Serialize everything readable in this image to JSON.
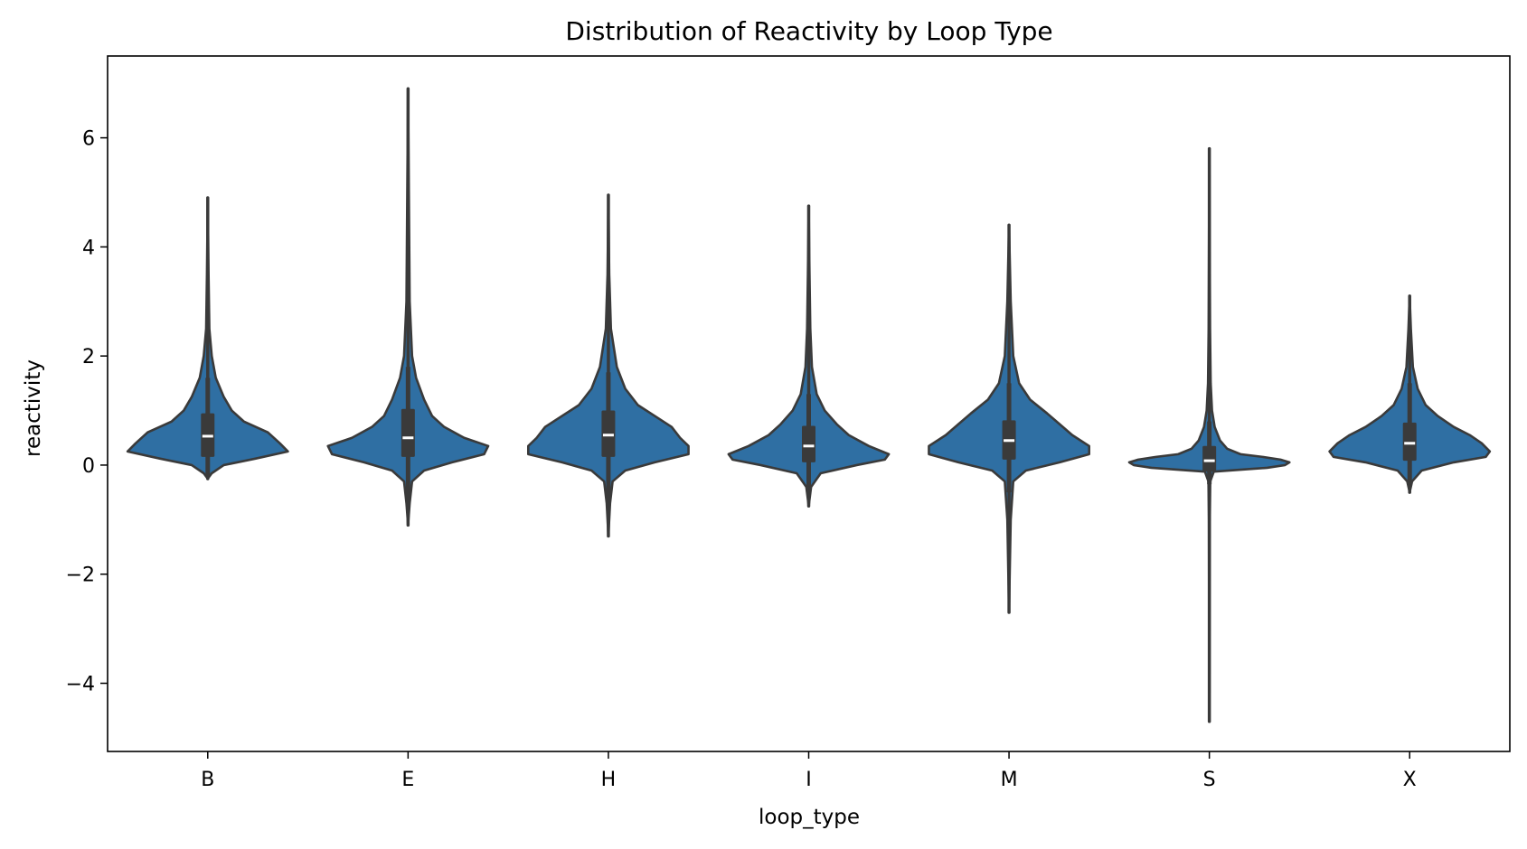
{
  "chart_data": {
    "type": "violin",
    "title": "Distribution of Reactivity by Loop Type",
    "xlabel": "loop_type",
    "ylabel": "reactivity",
    "ylim": [
      -5.25,
      7.5
    ],
    "yticks": [
      -4,
      -2,
      0,
      2,
      4,
      6
    ],
    "ytick_labels": [
      "−4",
      "−2",
      "0",
      "2",
      "4",
      "6"
    ],
    "grid": false,
    "legend": "none",
    "colors": {
      "fill": "#2f6fa3",
      "edge": "#3a3a3a",
      "box": "#3a3a3a",
      "median": "#ffffff"
    },
    "categories": [
      "B",
      "E",
      "H",
      "I",
      "M",
      "S",
      "X"
    ],
    "violins": [
      {
        "category": "B",
        "min": -0.25,
        "max": 4.9,
        "q1": 0.15,
        "median": 0.53,
        "q3": 0.95,
        "whisker_low": -0.2,
        "whisker_high": 1.6,
        "profile": [
          [
            -0.25,
            0.0
          ],
          [
            -0.15,
            0.05
          ],
          [
            0.0,
            0.2
          ],
          [
            0.12,
            0.6
          ],
          [
            0.25,
            1.0
          ],
          [
            0.4,
            0.9
          ],
          [
            0.6,
            0.75
          ],
          [
            0.8,
            0.45
          ],
          [
            1.0,
            0.3
          ],
          [
            1.25,
            0.2
          ],
          [
            1.6,
            0.1
          ],
          [
            2.0,
            0.05
          ],
          [
            2.5,
            0.02
          ],
          [
            3.5,
            0.01
          ],
          [
            4.9,
            0.0
          ]
        ]
      },
      {
        "category": "E",
        "min": -1.1,
        "max": 6.9,
        "q1": 0.15,
        "median": 0.5,
        "q3": 1.03,
        "whisker_low": -0.7,
        "whisker_high": 1.8,
        "profile": [
          [
            -1.1,
            0.0
          ],
          [
            -0.7,
            0.02
          ],
          [
            -0.3,
            0.05
          ],
          [
            -0.1,
            0.2
          ],
          [
            0.05,
            0.55
          ],
          [
            0.2,
            0.95
          ],
          [
            0.35,
            1.0
          ],
          [
            0.5,
            0.7
          ],
          [
            0.7,
            0.45
          ],
          [
            0.9,
            0.3
          ],
          [
            1.2,
            0.2
          ],
          [
            1.6,
            0.1
          ],
          [
            2.0,
            0.05
          ],
          [
            3.0,
            0.02
          ],
          [
            5.0,
            0.01
          ],
          [
            6.9,
            0.0
          ]
        ]
      },
      {
        "category": "H",
        "min": -1.3,
        "max": 4.95,
        "q1": 0.15,
        "median": 0.55,
        "q3": 1.0,
        "whisker_low": -0.7,
        "whisker_high": 1.7,
        "profile": [
          [
            -1.3,
            0.0
          ],
          [
            -0.7,
            0.02
          ],
          [
            -0.3,
            0.05
          ],
          [
            -0.1,
            0.2
          ],
          [
            0.05,
            0.55
          ],
          [
            0.2,
            0.95
          ],
          [
            0.35,
            0.95
          ],
          [
            0.5,
            0.85
          ],
          [
            0.7,
            0.75
          ],
          [
            0.9,
            0.55
          ],
          [
            1.1,
            0.35
          ],
          [
            1.4,
            0.2
          ],
          [
            1.8,
            0.1
          ],
          [
            2.5,
            0.03
          ],
          [
            3.5,
            0.01
          ],
          [
            4.95,
            0.0
          ]
        ]
      },
      {
        "category": "I",
        "min": -0.75,
        "max": 4.75,
        "q1": 0.05,
        "median": 0.35,
        "q3": 0.72,
        "whisker_low": -0.4,
        "whisker_high": 1.3,
        "profile": [
          [
            -0.75,
            0.0
          ],
          [
            -0.4,
            0.03
          ],
          [
            -0.15,
            0.15
          ],
          [
            0.0,
            0.6
          ],
          [
            0.1,
            0.95
          ],
          [
            0.2,
            1.0
          ],
          [
            0.35,
            0.75
          ],
          [
            0.55,
            0.5
          ],
          [
            0.75,
            0.35
          ],
          [
            1.0,
            0.2
          ],
          [
            1.3,
            0.1
          ],
          [
            1.8,
            0.04
          ],
          [
            2.5,
            0.02
          ],
          [
            3.5,
            0.01
          ],
          [
            4.75,
            0.0
          ]
        ]
      },
      {
        "category": "M",
        "min": -2.7,
        "max": 4.4,
        "q1": 0.1,
        "median": 0.45,
        "q3": 0.82,
        "whisker_low": -0.5,
        "whisker_high": 1.5,
        "profile": [
          [
            -2.7,
            0.0
          ],
          [
            -1.0,
            0.02
          ],
          [
            -0.3,
            0.05
          ],
          [
            -0.1,
            0.2
          ],
          [
            0.05,
            0.6
          ],
          [
            0.2,
            0.95
          ],
          [
            0.35,
            0.95
          ],
          [
            0.55,
            0.75
          ],
          [
            0.75,
            0.6
          ],
          [
            0.95,
            0.45
          ],
          [
            1.2,
            0.25
          ],
          [
            1.5,
            0.12
          ],
          [
            2.0,
            0.05
          ],
          [
            3.0,
            0.02
          ],
          [
            4.4,
            0.0
          ]
        ]
      },
      {
        "category": "S",
        "min": -4.7,
        "max": 5.8,
        "q1": -0.12,
        "median": 0.08,
        "q3": 0.35,
        "whisker_low": -0.35,
        "whisker_high": 0.8,
        "profile": [
          [
            -4.7,
            0.0
          ],
          [
            -1.0,
            0.005
          ],
          [
            -0.3,
            0.01
          ],
          [
            -0.12,
            0.05
          ],
          [
            -0.05,
            0.65
          ],
          [
            0.0,
            0.85
          ],
          [
            0.05,
            0.9
          ],
          [
            0.1,
            0.8
          ],
          [
            0.15,
            0.6
          ],
          [
            0.2,
            0.35
          ],
          [
            0.3,
            0.2
          ],
          [
            0.45,
            0.12
          ],
          [
            0.7,
            0.06
          ],
          [
            1.0,
            0.03
          ],
          [
            1.5,
            0.015
          ],
          [
            2.5,
            0.008
          ],
          [
            5.8,
            0.0
          ]
        ]
      },
      {
        "category": "X",
        "min": -0.5,
        "max": 3.1,
        "q1": 0.08,
        "median": 0.4,
        "q3": 0.78,
        "whisker_low": -0.35,
        "whisker_high": 1.5,
        "profile": [
          [
            -0.5,
            0.0
          ],
          [
            -0.3,
            0.03
          ],
          [
            -0.1,
            0.15
          ],
          [
            0.05,
            0.55
          ],
          [
            0.15,
            0.95
          ],
          [
            0.25,
            1.0
          ],
          [
            0.4,
            0.9
          ],
          [
            0.55,
            0.75
          ],
          [
            0.7,
            0.55
          ],
          [
            0.9,
            0.35
          ],
          [
            1.1,
            0.2
          ],
          [
            1.4,
            0.1
          ],
          [
            1.8,
            0.04
          ],
          [
            2.5,
            0.015
          ],
          [
            3.1,
            0.0
          ]
        ]
      }
    ]
  }
}
